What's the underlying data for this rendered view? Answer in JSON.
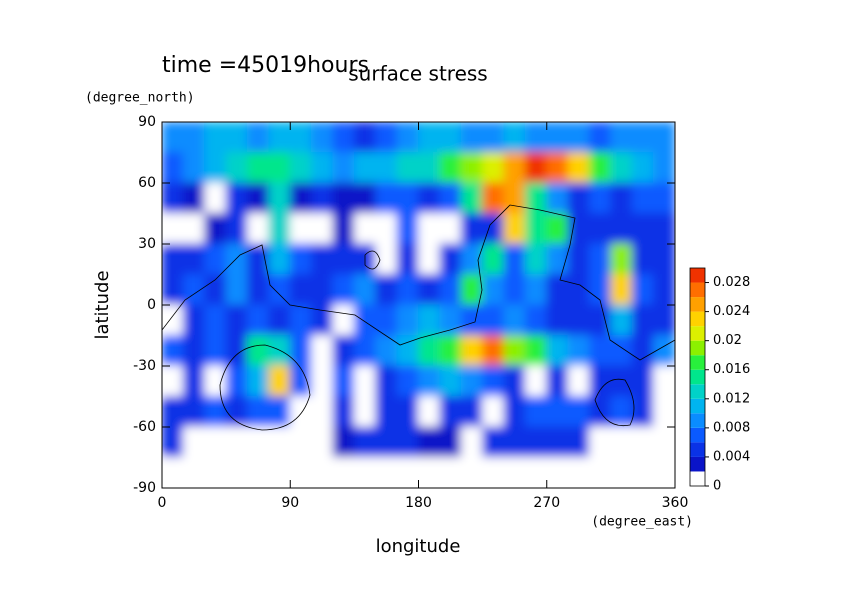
{
  "chart_data": {
    "type": "contour",
    "title": "surface stress",
    "annotation": "time =45019hours",
    "x_label": "longitude",
    "x_unit": "(degree_east)",
    "y_label": "latitude",
    "y_unit": "(degree_north)",
    "xlim": [
      0,
      360
    ],
    "ylim": [
      -90,
      90
    ],
    "xticks": [
      0,
      90,
      180,
      270,
      360
    ],
    "yticks": [
      90,
      60,
      30,
      0,
      -30,
      -60,
      -90
    ],
    "x": [
      7.5,
      22.5,
      37.5,
      52.5,
      67.5,
      82.5,
      97.5,
      112.5,
      127.5,
      142.5,
      157.5,
      172.5,
      187.5,
      202.5,
      217.5,
      232.5,
      247.5,
      262.5,
      277.5,
      292.5,
      307.5,
      322.5,
      337.5,
      352.5
    ],
    "y": [
      82.5,
      67.5,
      52.5,
      37.5,
      22.5,
      7.5,
      -7.5,
      -22.5,
      -37.5,
      -52.5,
      -67.5,
      -82.5
    ],
    "z": [
      [
        0.008,
        0.009,
        0.01,
        0.01,
        0.009,
        0.01,
        0.01,
        0.008,
        0.006,
        0.004,
        0.006,
        0.009,
        0.01,
        0.01,
        0.009,
        0.009,
        0.01,
        0.009,
        0.008,
        0.008,
        0.007,
        0.008,
        0.008,
        0.008
      ],
      [
        0.006,
        0.009,
        0.011,
        0.013,
        0.015,
        0.015,
        0.013,
        0.011,
        0.009,
        0.01,
        0.011,
        0.012,
        0.013,
        0.016,
        0.018,
        0.02,
        0.024,
        0.028,
        0.026,
        0.022,
        0.016,
        0.012,
        0.01,
        0.009
      ],
      [
        0.004,
        0.002,
        0,
        0.004,
        0.003,
        0.012,
        0.002,
        0.004,
        0.003,
        0.002,
        0.006,
        0.006,
        0.005,
        0.006,
        0.014,
        0.026,
        0.024,
        0.014,
        0.008,
        0.005,
        0.006,
        0.005,
        0.006,
        0.006
      ],
      [
        0,
        0,
        0.003,
        0.004,
        0,
        0.012,
        0,
        0,
        0.003,
        0,
        0,
        0.006,
        0,
        0,
        0.005,
        0.004,
        0.022,
        0.014,
        0.016,
        0.004,
        0.005,
        0.005,
        0.004,
        0.005
      ],
      [
        0.005,
        0.004,
        0.006,
        0.008,
        0.004,
        0.01,
        0.006,
        0.004,
        0.005,
        0.004,
        0,
        0.004,
        0,
        0.005,
        0.008,
        0.014,
        0.006,
        0.012,
        0.008,
        0.004,
        0.006,
        0.018,
        0.005,
        0.004
      ],
      [
        0.004,
        0.006,
        0.005,
        0.008,
        0.005,
        0.006,
        0.004,
        0.005,
        0.006,
        0.008,
        0.005,
        0.006,
        0.004,
        0.006,
        0.016,
        0.008,
        0.006,
        0.008,
        0.005,
        0.005,
        0.006,
        0.022,
        0.006,
        0.004
      ],
      [
        0,
        0.004,
        0.006,
        0.005,
        0.006,
        0.005,
        0.006,
        0.004,
        0,
        0.006,
        0.006,
        0.008,
        0.01,
        0.008,
        0.006,
        0.006,
        0.008,
        0.006,
        0.005,
        0.004,
        0.005,
        0.01,
        0.005,
        0.004
      ],
      [
        0.006,
        0.004,
        0.006,
        0.005,
        0.014,
        0.012,
        0.006,
        0,
        0.004,
        0.006,
        0.008,
        0.01,
        0.014,
        0.016,
        0.022,
        0.026,
        0.018,
        0.016,
        0.01,
        0.008,
        0.006,
        0.006,
        0.005,
        0.008
      ],
      [
        0,
        0.005,
        0,
        0.006,
        0.01,
        0.022,
        0.006,
        0,
        0.006,
        0,
        0.004,
        0.006,
        0.008,
        0.01,
        0.008,
        0.006,
        0.004,
        0,
        0.004,
        0,
        0.005,
        0.004,
        0.005,
        0
      ],
      [
        0.005,
        0.004,
        0.006,
        0.004,
        0.006,
        0.006,
        0,
        0,
        0.004,
        0,
        0.004,
        0.005,
        0,
        0.005,
        0.004,
        0,
        0.004,
        0.006,
        0.006,
        0.006,
        0.005,
        0.006,
        0.004,
        0
      ],
      [
        0.004,
        0,
        0,
        0,
        0,
        0,
        0,
        0,
        0.002,
        0.004,
        0.004,
        0.005,
        0.003,
        0.002,
        0,
        0.004,
        0.005,
        0.004,
        0.004,
        0.004,
        0,
        0,
        0,
        0
      ],
      [
        0,
        0,
        0,
        0,
        0,
        0,
        0,
        0,
        0,
        0,
        0,
        0,
        0,
        0,
        0,
        0,
        0,
        0,
        0,
        0,
        0,
        0,
        0,
        0
      ]
    ],
    "colorbar": {
      "lim": [
        0,
        0.03
      ],
      "levels": [
        0,
        0.002,
        0.004,
        0.006,
        0.008,
        0.01,
        0.012,
        0.014,
        0.016,
        0.018,
        0.02,
        0.022,
        0.024,
        0.026,
        0.028,
        0.03
      ],
      "colors": [
        "#ffffff",
        "#0a14c8",
        "#0a32e6",
        "#0a5aff",
        "#0a8cff",
        "#00b4f0",
        "#00d2c8",
        "#00e68c",
        "#28f03c",
        "#8cf000",
        "#dcf000",
        "#ffd200",
        "#ffa000",
        "#ff6e00",
        "#f03200"
      ],
      "ticks": [
        0,
        0.004,
        0.008,
        0.012,
        0.016,
        0.02,
        0.024,
        0.028
      ]
    }
  }
}
